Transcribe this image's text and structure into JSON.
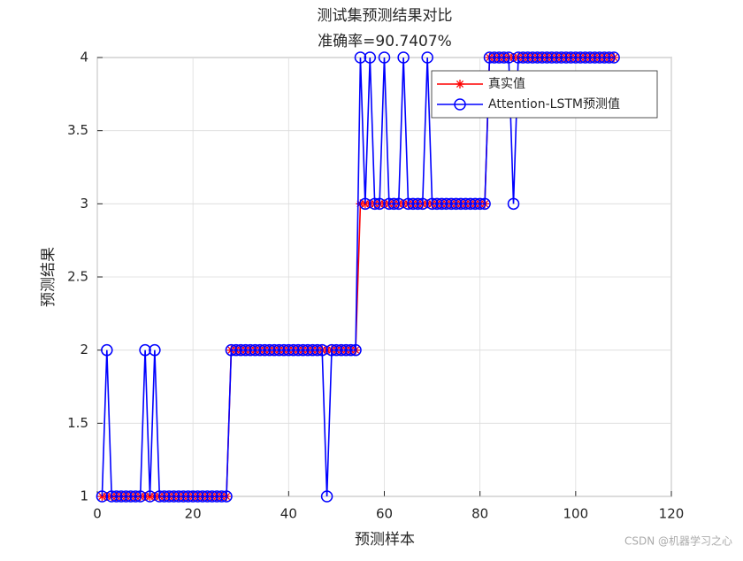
{
  "chart_data": {
    "type": "line",
    "title": "测试集预测结果对比",
    "subtitle": "准确率=90.7407%",
    "xlabel": "预测样本",
    "ylabel": "预测结果",
    "watermark": "CSDN @机器学习之心",
    "x": [
      1,
      2,
      3,
      4,
      5,
      6,
      7,
      8,
      9,
      10,
      11,
      12,
      13,
      14,
      15,
      16,
      17,
      18,
      19,
      20,
      21,
      22,
      23,
      24,
      25,
      26,
      27,
      28,
      29,
      30,
      31,
      32,
      33,
      34,
      35,
      36,
      37,
      38,
      39,
      40,
      41,
      42,
      43,
      44,
      45,
      46,
      47,
      48,
      49,
      50,
      51,
      52,
      53,
      54,
      55,
      56,
      57,
      58,
      59,
      60,
      61,
      62,
      63,
      64,
      65,
      66,
      67,
      68,
      69,
      70,
      71,
      72,
      73,
      74,
      75,
      76,
      77,
      78,
      79,
      80,
      81,
      82,
      83,
      84,
      85,
      86,
      87,
      88,
      89,
      90,
      91,
      92,
      93,
      94,
      95,
      96,
      97,
      98,
      99,
      100,
      101,
      102,
      103,
      104,
      105,
      106,
      107,
      108
    ],
    "series": [
      {
        "name": "真实值",
        "color": "#ff0000",
        "marker": "star",
        "values": [
          1,
          1,
          1,
          1,
          1,
          1,
          1,
          1,
          1,
          1,
          1,
          1,
          1,
          1,
          1,
          1,
          1,
          1,
          1,
          1,
          1,
          1,
          1,
          1,
          1,
          1,
          1,
          2,
          2,
          2,
          2,
          2,
          2,
          2,
          2,
          2,
          2,
          2,
          2,
          2,
          2,
          2,
          2,
          2,
          2,
          2,
          2,
          2,
          2,
          2,
          2,
          2,
          2,
          2,
          3,
          3,
          3,
          3,
          3,
          3,
          3,
          3,
          3,
          3,
          3,
          3,
          3,
          3,
          3,
          3,
          3,
          3,
          3,
          3,
          3,
          3,
          3,
          3,
          3,
          3,
          3,
          4,
          4,
          4,
          4,
          4,
          4,
          4,
          4,
          4,
          4,
          4,
          4,
          4,
          4,
          4,
          4,
          4,
          4,
          4,
          4,
          4,
          4,
          4,
          4,
          4,
          4,
          4
        ]
      },
      {
        "name": "Attention-LSTM预测值",
        "color": "#0000ff",
        "marker": "circle",
        "values": [
          1,
          2,
          1,
          1,
          1,
          1,
          1,
          1,
          1,
          2,
          1,
          2,
          1,
          1,
          1,
          1,
          1,
          1,
          1,
          1,
          1,
          1,
          1,
          1,
          1,
          1,
          1,
          2,
          2,
          2,
          2,
          2,
          2,
          2,
          2,
          2,
          2,
          2,
          2,
          2,
          2,
          2,
          2,
          2,
          2,
          2,
          2,
          1,
          2,
          2,
          2,
          2,
          2,
          2,
          4,
          3,
          4,
          3,
          3,
          4,
          3,
          3,
          3,
          4,
          3,
          3,
          3,
          3,
          4,
          3,
          3,
          3,
          3,
          3,
          3,
          3,
          3,
          3,
          3,
          3,
          3,
          4,
          4,
          4,
          4,
          4,
          3,
          4,
          4,
          4,
          4,
          4,
          4,
          4,
          4,
          4,
          4,
          4,
          4,
          4,
          4,
          4,
          4,
          4,
          4,
          4,
          4,
          4
        ]
      }
    ],
    "xlim": [
      0,
      120
    ],
    "xticks": [
      0,
      20,
      40,
      60,
      80,
      100,
      120
    ],
    "ylim": [
      1,
      4
    ],
    "yticks": [
      1,
      1.5,
      2,
      2.5,
      3,
      3.5,
      4
    ],
    "grid": true,
    "legend": "northeast"
  }
}
